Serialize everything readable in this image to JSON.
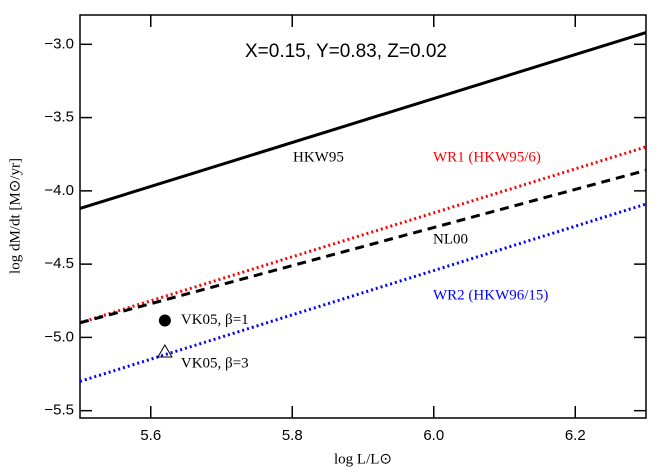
{
  "chart_data": {
    "type": "line",
    "annotation": "X=0.15, Y=0.83, Z=0.02",
    "xlabel": "log L/L⊙",
    "ylabel": "log dM/dt [M⊙/yr]",
    "xlim": [
      5.5,
      6.3
    ],
    "ylim": [
      -5.55,
      -2.8
    ],
    "xticks": [
      5.6,
      5.8,
      {
        "value": 6.0,
        "label": "6.0"
      },
      6.2
    ],
    "yticks": [
      {
        "value": -3.0,
        "label": "−3.0"
      },
      {
        "value": -3.5,
        "label": "−3.5"
      },
      {
        "value": -4.0,
        "label": "−4.0"
      },
      {
        "value": -4.5,
        "label": "−4.5"
      },
      {
        "value": -5.0,
        "label": "−5.0"
      },
      {
        "value": -5.5,
        "label": "−5.5"
      }
    ],
    "series": [
      {
        "name": "HKW95",
        "color": "#000000",
        "style": "solid",
        "x": [
          5.5,
          6.3
        ],
        "values": [
          -4.12,
          -2.92
        ]
      },
      {
        "name": "WR1 (HKW95/6)",
        "color": "#ff0000",
        "style": "dotted",
        "x": [
          5.5,
          6.3
        ],
        "values": [
          -4.9,
          -3.7
        ]
      },
      {
        "name": "NL00",
        "color": "#000000",
        "style": "dashed",
        "x": [
          5.5,
          6.3
        ],
        "values": [
          -4.9,
          -3.86
        ]
      },
      {
        "name": "WR2 (HKW96/15)",
        "color": "#0000ff",
        "style": "dotted",
        "x": [
          5.5,
          6.3
        ],
        "values": [
          -5.3,
          -4.09
        ]
      }
    ],
    "points": [
      {
        "name": "VK05, β=1",
        "marker": "filled-circle",
        "x": 5.62,
        "y": -4.885
      },
      {
        "name": "VK05, β=3",
        "marker": "open-triangle",
        "x": 5.62,
        "y": -5.1
      }
    ]
  }
}
